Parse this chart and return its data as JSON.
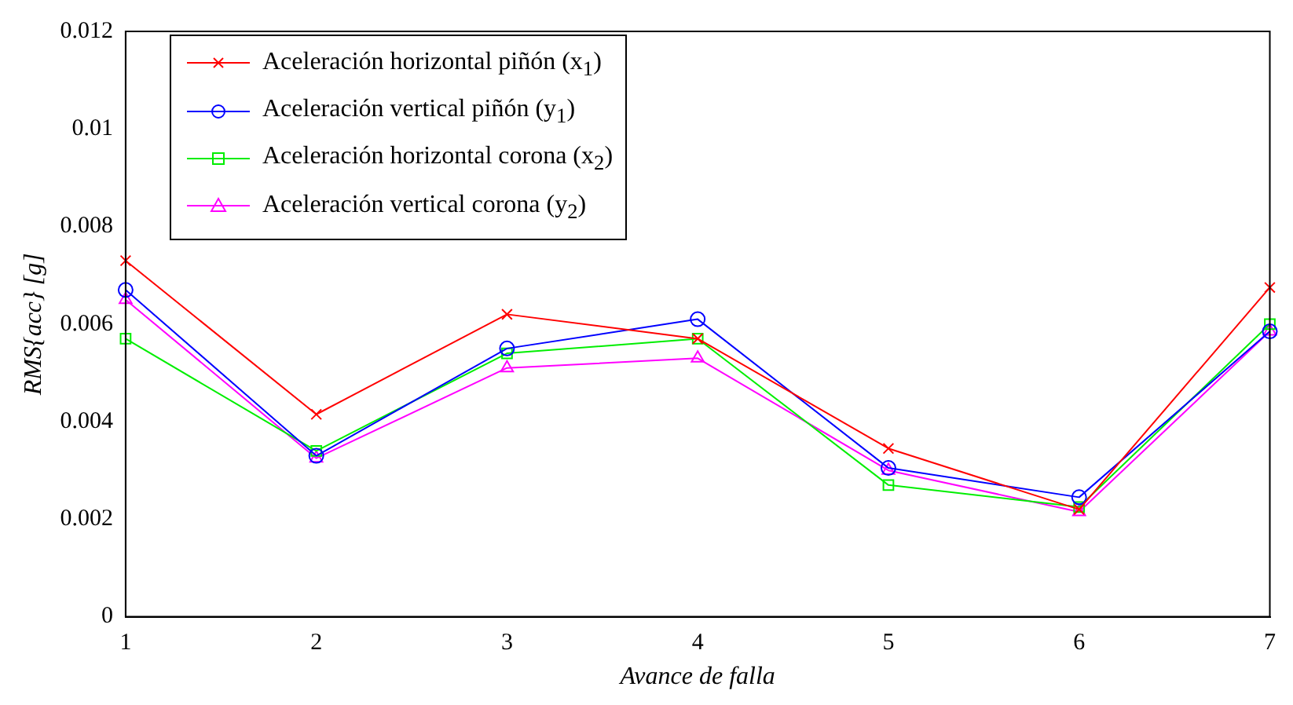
{
  "chart_data": {
    "type": "line",
    "xlabel": "Avance de falla",
    "ylabel": "RMS{acc} [g]",
    "x": [
      1,
      2,
      3,
      4,
      5,
      6,
      7
    ],
    "xlim": [
      1,
      7
    ],
    "xticks": [
      1,
      2,
      3,
      4,
      5,
      6,
      7
    ],
    "ylim": [
      0,
      0.012
    ],
    "yticks": [
      0,
      0.002,
      0.004,
      0.006,
      0.008,
      0.01,
      0.012
    ],
    "grid": false,
    "legend": "top left",
    "line_style": "solid",
    "series": [
      {
        "name": "Aceleración horizontal piñón (x$_{1}$)",
        "color": "#ff0000",
        "marker": "cross",
        "values": [
          0.0073,
          0.00415,
          0.0062,
          0.0057,
          0.00345,
          0.0022,
          0.00675
        ]
      },
      {
        "name": "Aceleración vertical piñón (y$_{1}$)",
        "color": "#0000ff",
        "marker": "circle",
        "values": [
          0.0067,
          0.0033,
          0.0055,
          0.0061,
          0.00305,
          0.00245,
          0.00585
        ]
      },
      {
        "name": "Aceleración horizontal corona (x$_{2}$)",
        "color": "#00ee00",
        "marker": "square",
        "values": [
          0.0057,
          0.0034,
          0.0054,
          0.0057,
          0.0027,
          0.00225,
          0.006
        ]
      },
      {
        "name": "Aceleración vertical corona (y$_{2}$)",
        "color": "#ff00ff",
        "marker": "triangle",
        "values": [
          0.0065,
          0.00325,
          0.0051,
          0.0053,
          0.003,
          0.00215,
          0.00585
        ]
      }
    ]
  }
}
